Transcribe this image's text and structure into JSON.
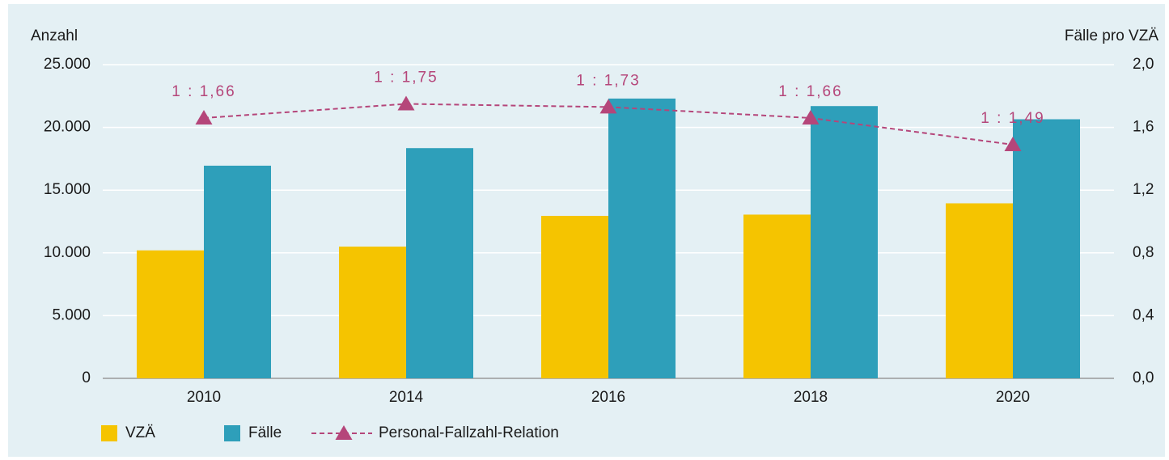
{
  "chart_data": {
    "type": "bar",
    "y_label": "Anzahl",
    "y2_label": "Fälle pro VZÄ",
    "categories": [
      "2010",
      "2014",
      "2016",
      "2018",
      "2020"
    ],
    "series": [
      {
        "name": "VZÄ",
        "color": "#f5c400",
        "values": [
          10200,
          10500,
          12950,
          13050,
          13950
        ]
      },
      {
        "name": "Fälle",
        "color": "#2e9fba",
        "values": [
          16950,
          18350,
          22300,
          21700,
          20650
        ]
      },
      {
        "name": "Personal-Fallzahl-Relation",
        "type": "line",
        "axis": "y2",
        "color": "#b5467a",
        "values": [
          1.66,
          1.75,
          1.73,
          1.66,
          1.49
        ],
        "value_labels": [
          "1 : 1,66",
          "1 : 1,75",
          "1 : 1,73",
          "1 : 1,66",
          "1 : 1,49"
        ]
      }
    ],
    "ylim": [
      0,
      25000
    ],
    "yticks": [
      0,
      {
        "value": 5000,
        "label": "5.000"
      },
      {
        "value": 10000,
        "label": "10.000"
      },
      {
        "value": 15000,
        "label": "15.000"
      },
      {
        "value": 20000,
        "label": "20.000"
      },
      {
        "value": 25000,
        "label": "25.000"
      }
    ],
    "y2lim": [
      0,
      2
    ],
    "y2ticks": [
      {
        "value": 0,
        "label": "0,0"
      },
      {
        "value": 0.4,
        "label": "0,4"
      },
      {
        "value": 0.8,
        "label": "0,8"
      },
      {
        "value": 1.2,
        "label": "1,2"
      },
      {
        "value": 1.6,
        "label": "1,6"
      },
      {
        "value": 2,
        "label": "2,0"
      }
    ],
    "grid": true
  }
}
